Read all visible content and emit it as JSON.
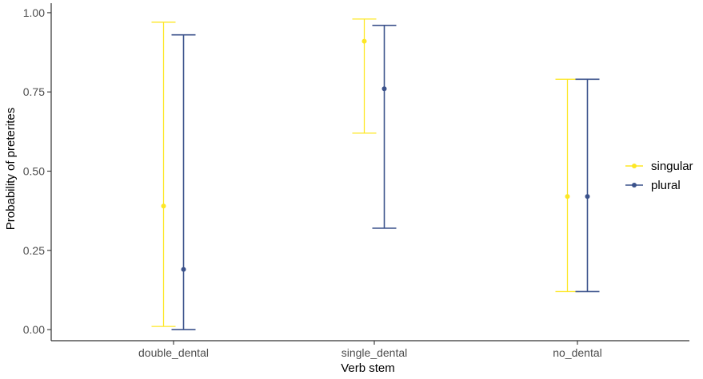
{
  "chart_data": {
    "type": "errorbar",
    "title": "",
    "xlabel": "Verb stem",
    "ylabel": "Probability of preterites",
    "categories": [
      "double_dental",
      "single_dental",
      "no_dental"
    ],
    "ylim": [
      -0.035,
      1.03
    ],
    "yticks": [
      0.0,
      0.25,
      0.5,
      0.75,
      1.0
    ],
    "ytick_labels": [
      "0.00",
      "0.25",
      "0.50",
      "0.75",
      "1.00"
    ],
    "grid": false,
    "legend_position": "right",
    "series": [
      {
        "name": "singular",
        "color": "#FDE725",
        "values": [
          0.39,
          0.91,
          0.42
        ],
        "lower": [
          0.01,
          0.62,
          0.12
        ],
        "upper": [
          0.97,
          0.98,
          0.79
        ]
      },
      {
        "name": "plural",
        "color": "#3B528B",
        "values": [
          0.19,
          0.76,
          0.42
        ],
        "lower": [
          0.0,
          0.32,
          0.12
        ],
        "upper": [
          0.93,
          0.96,
          0.79
        ]
      }
    ]
  }
}
